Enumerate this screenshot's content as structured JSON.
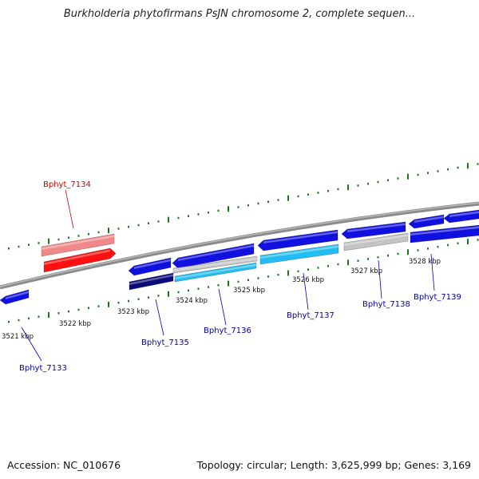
{
  "title": "Burkholderia phytofirmans PsJN chromosome 2, complete sequen...",
  "footer": {
    "accession": "Accession: NC_010676",
    "summary": "Topology: circular; Length: 3,625,999 bp; Genes: 3,169"
  },
  "colors": {
    "backbone": "#8a8a8a",
    "tick": "#1a7a1a",
    "blue": "#1010e0",
    "dark_navy": "#0a0a78",
    "cyan": "#22bdf2",
    "light_gray": "#c4c4c4",
    "red": "#ff1010",
    "pink": "#f08a8a",
    "label_blue": "#0000aa",
    "label_red": "#cc0000"
  },
  "scale_labels": [
    "3521 kbp",
    "3522 kbp",
    "3523 kbp",
    "3524 kbp",
    "3525 kbp",
    "3526 kbp",
    "3527 kbp",
    "3528 kbp"
  ],
  "gene_labels": [
    {
      "name": "Bphyt_7134",
      "color": "red"
    },
    {
      "name": "Bphyt_7133",
      "color": "blue"
    },
    {
      "name": "Bphyt_7135",
      "color": "blue"
    },
    {
      "name": "Bphyt_7136",
      "color": "blue"
    },
    {
      "name": "Bphyt_7137",
      "color": "blue"
    },
    {
      "name": "Bphyt_7138",
      "color": "blue"
    },
    {
      "name": "Bphyt_7139",
      "color": "blue"
    }
  ]
}
